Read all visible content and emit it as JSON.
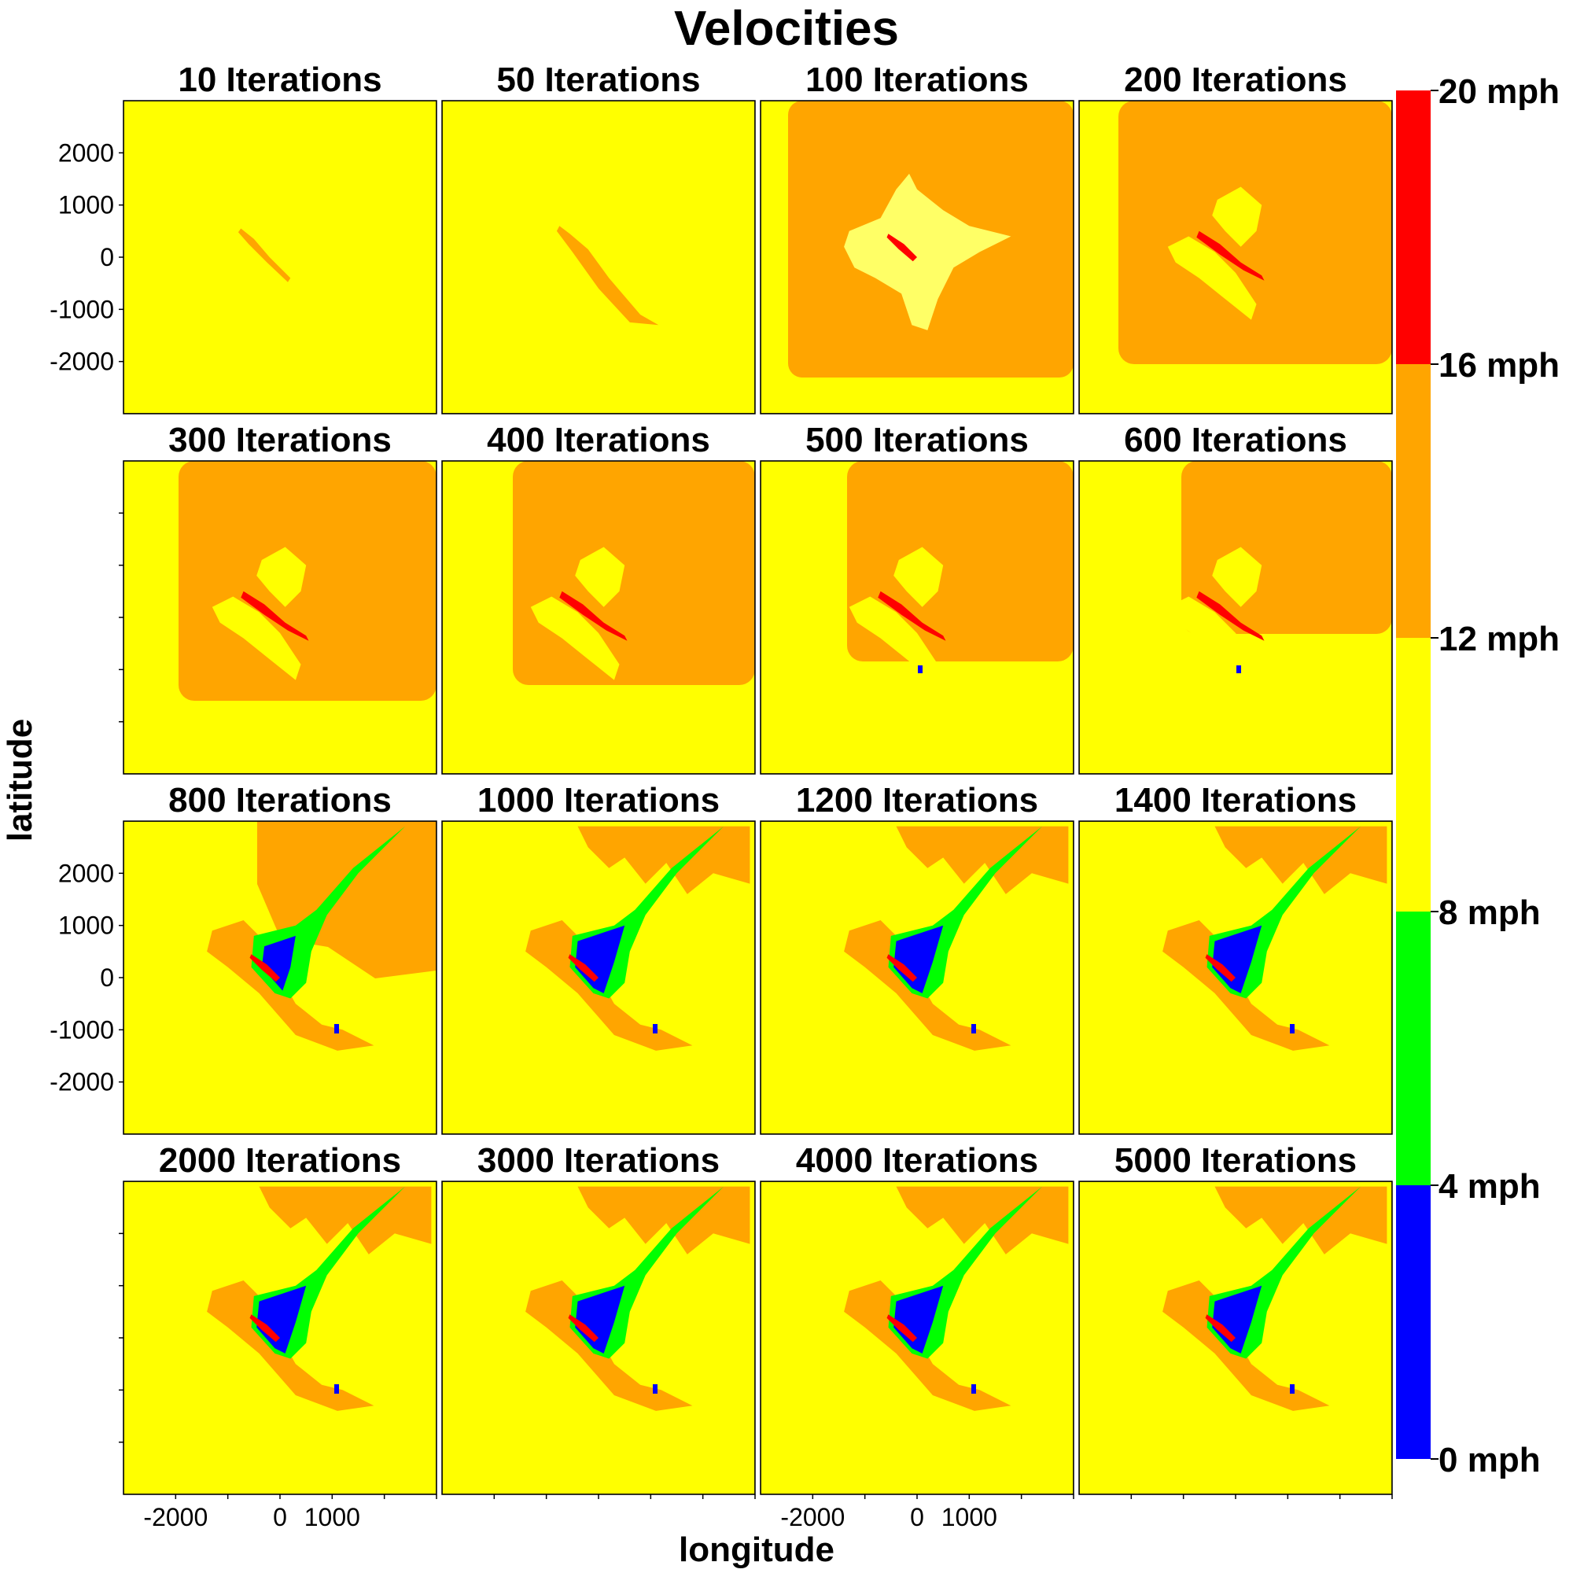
{
  "chart_data": {
    "type": "heatmap",
    "title": "Velocities",
    "xlabel": "longitude",
    "ylabel": "latitude",
    "xlim": [
      -3000,
      3000
    ],
    "ylim": [
      -3000,
      3000
    ],
    "x_ticks": [
      -2000,
      0,
      1000
    ],
    "y_ticks": [
      2000,
      1000,
      0,
      -1000,
      -2000
    ],
    "grid": false,
    "legend": {
      "position": "right",
      "bins": [
        {
          "label": "0 mph",
          "from": 0,
          "to": 4,
          "color": "#0000ff"
        },
        {
          "label": "4 mph",
          "from": 4,
          "to": 8,
          "color": "#00ff00"
        },
        {
          "label": "8 mph",
          "from": 8,
          "to": 12,
          "color": "#ffff00"
        },
        {
          "label": "12 mph",
          "from": 12,
          "to": 16,
          "color": "#ffa500"
        },
        {
          "label": "16 mph",
          "from": 16,
          "to": 20,
          "color": "#ff0000"
        }
      ],
      "top_label": "20 mph"
    },
    "colors": {
      "blue": "#0000ff",
      "green": "#00ff00",
      "yellow": "#ffff00",
      "orange": "#ffa500",
      "red": "#ff0000"
    },
    "panels": [
      {
        "title": "10 Iterations",
        "iterations": 10
      },
      {
        "title": "50 Iterations",
        "iterations": 50
      },
      {
        "title": "100 Iterations",
        "iterations": 100
      },
      {
        "title": "200 Iterations",
        "iterations": 200
      },
      {
        "title": "300 Iterations",
        "iterations": 300
      },
      {
        "title": "400 Iterations",
        "iterations": 400
      },
      {
        "title": "500 Iterations",
        "iterations": 500
      },
      {
        "title": "600 Iterations",
        "iterations": 600
      },
      {
        "title": "800 Iterations",
        "iterations": 800
      },
      {
        "title": "1000 Iterations",
        "iterations": 1000
      },
      {
        "title": "1200 Iterations",
        "iterations": 1200
      },
      {
        "title": "1400 Iterations",
        "iterations": 1400
      },
      {
        "title": "2000 Iterations",
        "iterations": 2000
      },
      {
        "title": "3000 Iterations",
        "iterations": 3000
      },
      {
        "title": "4000 Iterations",
        "iterations": 4000
      },
      {
        "title": "5000 Iterations",
        "iterations": 5000
      }
    ]
  }
}
